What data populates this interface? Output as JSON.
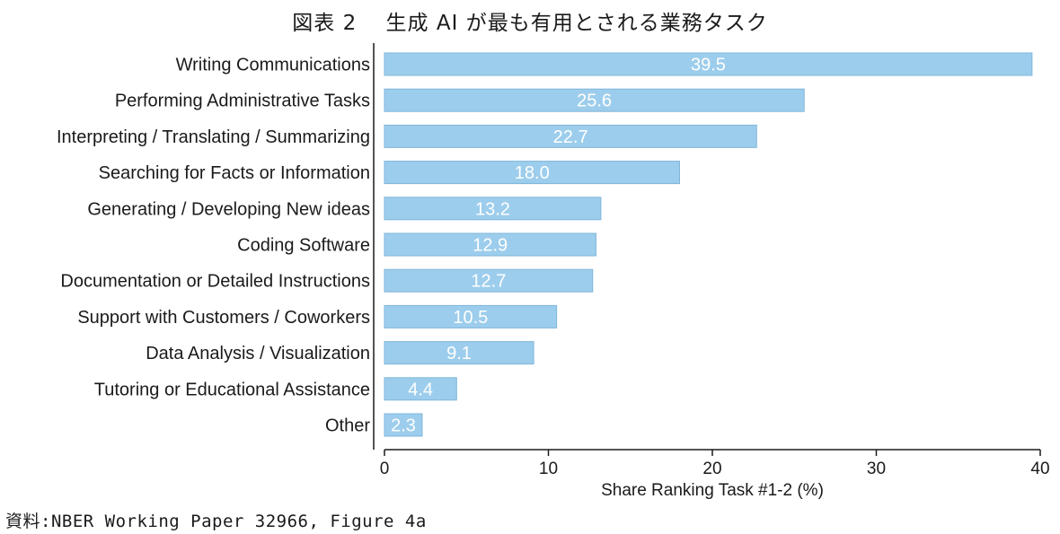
{
  "figure_title": "図表 2　 生成 AI が最も有用とされる業務タスク",
  "source_note": "資料:NBER Working Paper 32966, Figure 4a",
  "colors": {
    "bar_fill": "#9dcdec",
    "bar_stroke": "#7fb6db",
    "value_text": "#ffffff",
    "axis": "#1a1a1a"
  },
  "chart_data": {
    "type": "bar",
    "orientation": "horizontal",
    "title": "図表 2　 生成 AI が最も有用とされる業務タスク",
    "xlabel": "Share Ranking Task #1-2 (%)",
    "ylabel": "",
    "xlim": [
      0,
      40
    ],
    "xticks": [
      0,
      10,
      20,
      30,
      40
    ],
    "grid": false,
    "categories": [
      "Writing Communications",
      "Performing Administrative Tasks",
      "Interpreting / Translating / Summarizing",
      "Searching for Facts or Information",
      "Generating / Developing New ideas",
      "Coding Software",
      "Documentation or Detailed Instructions",
      "Support with Customers / Coworkers",
      "Data Analysis / Visualization",
      "Tutoring or Educational Assistance",
      "Other"
    ],
    "values": [
      39.5,
      25.6,
      22.7,
      18.0,
      13.2,
      12.9,
      12.7,
      10.5,
      9.1,
      4.4,
      2.3
    ],
    "value_labels": [
      "39.5",
      "25.6",
      "22.7",
      "18.0",
      "13.2",
      "12.9",
      "12.7",
      "10.5",
      "9.1",
      "4.4",
      "2.3"
    ]
  }
}
